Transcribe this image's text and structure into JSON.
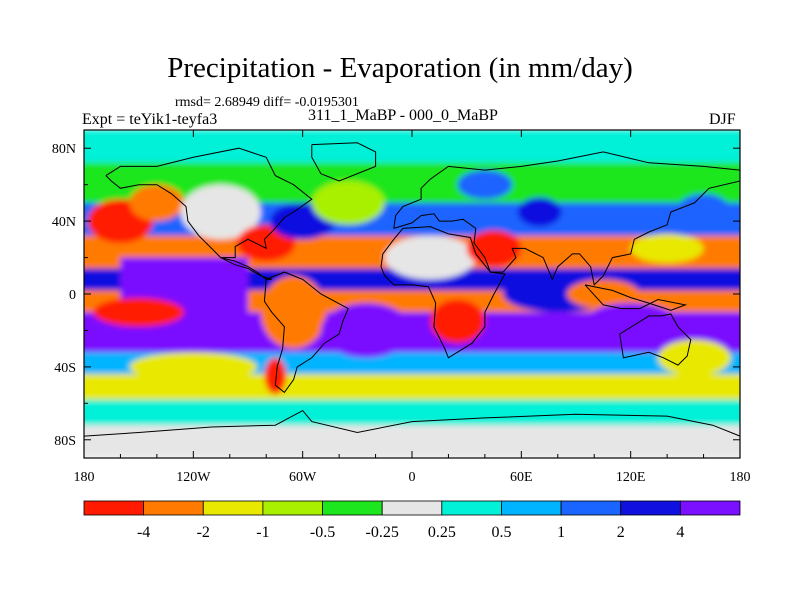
{
  "chart_data": {
    "type": "heatmap",
    "title": "Precipitation - Evaporation (in mm/day)",
    "stats_text": "rmsd= 2.68949 diff= -0.0195301",
    "experiment_label": "Expt = teYik1-teyfa3",
    "case_label": "311_1_MaBP - 000_0_MaBP",
    "season": "DJF",
    "xlabel": "",
    "ylabel": "",
    "xlim": [
      -180,
      180
    ],
    "ylim": [
      -90,
      90
    ],
    "x_ticks": [
      {
        "value": -180,
        "label": "180"
      },
      {
        "value": -120,
        "label": "120W"
      },
      {
        "value": -60,
        "label": "60W"
      },
      {
        "value": 0,
        "label": "0"
      },
      {
        "value": 60,
        "label": "60E"
      },
      {
        "value": 120,
        "label": "120E"
      },
      {
        "value": 180,
        "label": "180"
      }
    ],
    "y_ticks": [
      {
        "value": 80,
        "label": "80N"
      },
      {
        "value": 40,
        "label": "40N"
      },
      {
        "value": 0,
        "label": "0"
      },
      {
        "value": -40,
        "label": "40S"
      },
      {
        "value": -80,
        "label": "80S"
      }
    ],
    "colorbar": {
      "levels": [
        "-4",
        "-2",
        "-1",
        "-0.5",
        "-0.25",
        "0.25",
        "0.5",
        "1",
        "2",
        "4"
      ],
      "colors": [
        "#ff1a00",
        "#ff7a00",
        "#e8e800",
        "#a8f000",
        "#1ee61e",
        "#e6e6e6",
        "#00f0d8",
        "#00b4ff",
        "#1a64ff",
        "#1010e0",
        "#7a10ff"
      ]
    },
    "bands": [
      {
        "lat_min": 72,
        "lat_max": 90,
        "class": 6
      },
      {
        "lat_min": 50,
        "lat_max": 72,
        "class": 4
      },
      {
        "lat_min": 32,
        "lat_max": 50,
        "class": 8
      },
      {
        "lat_min": 14,
        "lat_max": 32,
        "class": 1
      },
      {
        "lat_min": 2,
        "lat_max": 14,
        "class": 9
      },
      {
        "lat_min": -10,
        "lat_max": 2,
        "class": 1
      },
      {
        "lat_min": -22,
        "lat_max": 20,
        "lon_min": -160,
        "lon_max": -90,
        "class": 10
      },
      {
        "lat_min": -32,
        "lat_max": -10,
        "class": 10
      },
      {
        "lat_min": -44,
        "lat_max": -32,
        "class": 7
      },
      {
        "lat_min": -58,
        "lat_max": -44,
        "class": 2
      },
      {
        "lat_min": -72,
        "lat_max": -58,
        "class": 6
      },
      {
        "lat_min": -90,
        "lat_max": -72,
        "class": 5
      }
    ],
    "blobs": [
      {
        "lon": -160,
        "lat": 40,
        "rlon": 18,
        "rlat": 12,
        "class": 0
      },
      {
        "lon": -140,
        "lat": 50,
        "rlon": 15,
        "rlat": 10,
        "class": 1
      },
      {
        "lon": -105,
        "lat": 45,
        "rlon": 22,
        "rlat": 15,
        "class": 5
      },
      {
        "lon": -80,
        "lat": 28,
        "rlon": 16,
        "rlat": 10,
        "class": 0
      },
      {
        "lon": -60,
        "lat": 40,
        "rlon": 18,
        "rlat": 10,
        "class": 9
      },
      {
        "lon": -35,
        "lat": 50,
        "rlon": 20,
        "rlat": 12,
        "class": 3
      },
      {
        "lon": -65,
        "lat": -10,
        "rlon": 18,
        "rlat": 20,
        "class": 1
      },
      {
        "lon": -75,
        "lat": -45,
        "rlon": 6,
        "rlat": 10,
        "class": 0
      },
      {
        "lon": -25,
        "lat": -20,
        "rlon": 25,
        "rlat": 15,
        "class": 10
      },
      {
        "lon": 10,
        "lat": 20,
        "rlon": 25,
        "rlat": 12,
        "class": 5
      },
      {
        "lon": 25,
        "lat": -15,
        "rlon": 15,
        "rlat": 12,
        "class": 0
      },
      {
        "lon": 45,
        "lat": 25,
        "rlon": 15,
        "rlat": 10,
        "class": 0
      },
      {
        "lon": 40,
        "lat": 60,
        "rlon": 15,
        "rlat": 8,
        "class": 8
      },
      {
        "lon": 70,
        "lat": 45,
        "rlon": 12,
        "rlat": 8,
        "class": 9
      },
      {
        "lon": 80,
        "lat": 0,
        "rlon": 30,
        "rlat": 10,
        "class": 9
      },
      {
        "lon": 105,
        "lat": 0,
        "rlon": 20,
        "rlat": 8,
        "class": 1
      },
      {
        "lon": 120,
        "lat": -15,
        "rlon": 25,
        "rlat": 10,
        "class": 10
      },
      {
        "lon": 140,
        "lat": 25,
        "rlon": 20,
        "rlat": 8,
        "class": 2
      },
      {
        "lon": 155,
        "lat": -35,
        "rlon": 20,
        "rlat": 10,
        "class": 2
      },
      {
        "lon": 160,
        "lat": 45,
        "rlon": 15,
        "rlat": 10,
        "class": 8
      },
      {
        "lon": -120,
        "lat": -40,
        "rlon": 35,
        "rlat": 8,
        "class": 2
      },
      {
        "lon": -150,
        "lat": -10,
        "rlon": 25,
        "rlat": 8,
        "class": 0
      }
    ],
    "coastlines": [
      {
        "name": "north-america",
        "points": [
          [
            -168,
            65
          ],
          [
            -160,
            70
          ],
          [
            -140,
            70
          ],
          [
            -120,
            75
          ],
          [
            -95,
            80
          ],
          [
            -80,
            75
          ],
          [
            -75,
            65
          ],
          [
            -65,
            60
          ],
          [
            -55,
            52
          ],
          [
            -65,
            45
          ],
          [
            -70,
            42
          ],
          [
            -76,
            35
          ],
          [
            -81,
            30
          ],
          [
            -80,
            25
          ],
          [
            -90,
            30
          ],
          [
            -97,
            26
          ],
          [
            -97,
            20
          ],
          [
            -105,
            20
          ],
          [
            -110,
            25
          ],
          [
            -117,
            32
          ],
          [
            -123,
            40
          ],
          [
            -124,
            48
          ],
          [
            -132,
            55
          ],
          [
            -140,
            60
          ],
          [
            -150,
            60
          ],
          [
            -160,
            58
          ],
          [
            -165,
            62
          ],
          [
            -168,
            65
          ]
        ]
      },
      {
        "name": "central-america",
        "points": [
          [
            -105,
            20
          ],
          [
            -97,
            18
          ],
          [
            -90,
            15
          ],
          [
            -85,
            12
          ],
          [
            -80,
            8
          ],
          [
            -77,
            8
          ],
          [
            -83,
            10
          ],
          [
            -90,
            14
          ],
          [
            -97,
            16
          ],
          [
            -105,
            20
          ]
        ]
      },
      {
        "name": "greenland",
        "points": [
          [
            -55,
            82
          ],
          [
            -30,
            83
          ],
          [
            -20,
            78
          ],
          [
            -20,
            70
          ],
          [
            -40,
            62
          ],
          [
            -50,
            66
          ],
          [
            -55,
            75
          ],
          [
            -55,
            82
          ]
        ]
      },
      {
        "name": "south-america",
        "points": [
          [
            -80,
            8
          ],
          [
            -70,
            12
          ],
          [
            -60,
            8
          ],
          [
            -50,
            0
          ],
          [
            -35,
            -8
          ],
          [
            -38,
            -15
          ],
          [
            -40,
            -22
          ],
          [
            -48,
            -27
          ],
          [
            -55,
            -35
          ],
          [
            -63,
            -40
          ],
          [
            -65,
            -47
          ],
          [
            -70,
            -54
          ],
          [
            -75,
            -50
          ],
          [
            -74,
            -40
          ],
          [
            -71,
            -30
          ],
          [
            -70,
            -18
          ],
          [
            -77,
            -10
          ],
          [
            -81,
            -4
          ],
          [
            -80,
            8
          ]
        ]
      },
      {
        "name": "africa",
        "points": [
          [
            -17,
            15
          ],
          [
            -16,
            22
          ],
          [
            -10,
            30
          ],
          [
            -5,
            36
          ],
          [
            10,
            37
          ],
          [
            20,
            33
          ],
          [
            32,
            31
          ],
          [
            35,
            22
          ],
          [
            43,
            12
          ],
          [
            51,
            11
          ],
          [
            45,
            0
          ],
          [
            40,
            -10
          ],
          [
            40,
            -18
          ],
          [
            33,
            -27
          ],
          [
            20,
            -35
          ],
          [
            18,
            -30
          ],
          [
            12,
            -18
          ],
          [
            13,
            -5
          ],
          [
            9,
            4
          ],
          [
            0,
            5
          ],
          [
            -10,
            5
          ],
          [
            -15,
            10
          ],
          [
            -17,
            15
          ]
        ]
      },
      {
        "name": "europe-asia",
        "points": [
          [
            -10,
            36
          ],
          [
            -9,
            43
          ],
          [
            -5,
            48
          ],
          [
            5,
            52
          ],
          [
            5,
            58
          ],
          [
            10,
            63
          ],
          [
            20,
            70
          ],
          [
            40,
            68
          ],
          [
            60,
            70
          ],
          [
            80,
            73
          ],
          [
            105,
            78
          ],
          [
            130,
            72
          ],
          [
            160,
            70
          ],
          [
            180,
            68
          ],
          [
            180,
            62
          ],
          [
            163,
            58
          ],
          [
            155,
            50
          ],
          [
            142,
            45
          ],
          [
            140,
            38
          ],
          [
            130,
            34
          ],
          [
            122,
            30
          ],
          [
            120,
            22
          ],
          [
            110,
            20
          ],
          [
            105,
            10
          ],
          [
            100,
            5
          ],
          [
            98,
            15
          ],
          [
            92,
            22
          ],
          [
            88,
            22
          ],
          [
            80,
            15
          ],
          [
            77,
            8
          ],
          [
            72,
            20
          ],
          [
            62,
            25
          ],
          [
            55,
            25
          ],
          [
            57,
            20
          ],
          [
            50,
            12
          ],
          [
            43,
            12
          ],
          [
            40,
            20
          ],
          [
            34,
            28
          ],
          [
            35,
            36
          ],
          [
            28,
            41
          ],
          [
            22,
            40
          ],
          [
            15,
            40
          ],
          [
            12,
            44
          ],
          [
            5,
            43
          ],
          [
            0,
            39
          ],
          [
            -10,
            36
          ]
        ]
      },
      {
        "name": "australia",
        "points": [
          [
            114,
            -22
          ],
          [
            122,
            -17
          ],
          [
            130,
            -12
          ],
          [
            137,
            -12
          ],
          [
            142,
            -11
          ],
          [
            146,
            -18
          ],
          [
            153,
            -25
          ],
          [
            151,
            -34
          ],
          [
            146,
            -39
          ],
          [
            138,
            -35
          ],
          [
            130,
            -32
          ],
          [
            116,
            -35
          ],
          [
            114,
            -22
          ]
        ]
      },
      {
        "name": "indonesia",
        "points": [
          [
            95,
            5
          ],
          [
            105,
            -6
          ],
          [
            115,
            -8
          ],
          [
            125,
            -8
          ],
          [
            135,
            -3
          ],
          [
            150,
            -6
          ],
          [
            142,
            -9
          ],
          [
            130,
            -5
          ],
          [
            120,
            -2
          ],
          [
            110,
            2
          ],
          [
            100,
            4
          ],
          [
            95,
            5
          ]
        ]
      },
      {
        "name": "antarctica",
        "points": [
          [
            -180,
            -78
          ],
          [
            -150,
            -76
          ],
          [
            -110,
            -73
          ],
          [
            -75,
            -72
          ],
          [
            -60,
            -64
          ],
          [
            -55,
            -70
          ],
          [
            -30,
            -76
          ],
          [
            0,
            -70
          ],
          [
            40,
            -68
          ],
          [
            90,
            -66
          ],
          [
            140,
            -67
          ],
          [
            165,
            -72
          ],
          [
            180,
            -78
          ]
        ]
      }
    ]
  }
}
